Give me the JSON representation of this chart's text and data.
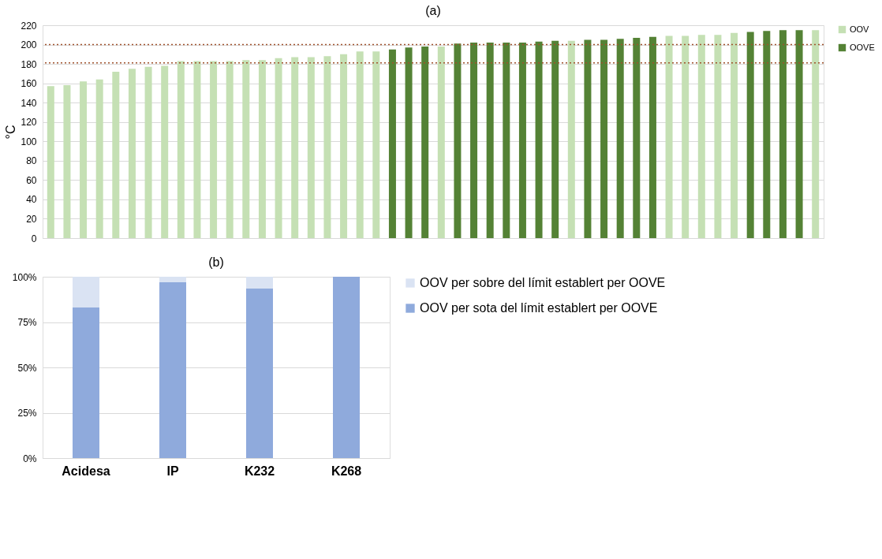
{
  "chart_data": [
    {
      "type": "bar",
      "title": "(a)",
      "ylabel": "°C",
      "categories": [
        null,
        null,
        null,
        null,
        null,
        null,
        null,
        null,
        null,
        null,
        null,
        null,
        null,
        null,
        null,
        null,
        null,
        null,
        null,
        null,
        null,
        null,
        null,
        null,
        null,
        null,
        null,
        null,
        null,
        null,
        null,
        null,
        null,
        null,
        null,
        null,
        null,
        null,
        null,
        null,
        null,
        null,
        null,
        null,
        null,
        null,
        null,
        null
      ],
      "series": [
        {
          "name": "OOV",
          "color": "#c5e0b4",
          "values": [
            157,
            158,
            162,
            164,
            172,
            175,
            177,
            178,
            183,
            183,
            183,
            183,
            184,
            184,
            186,
            187,
            187,
            188,
            190,
            193,
            193,
            null,
            null,
            null,
            198,
            null,
            null,
            null,
            null,
            null,
            null,
            null,
            204,
            null,
            null,
            null,
            null,
            null,
            209,
            209,
            210,
            210,
            212,
            null,
            null,
            null,
            null,
            215
          ]
        },
        {
          "name": "OOVE",
          "color": "#548235",
          "values": [
            null,
            null,
            null,
            null,
            null,
            null,
            null,
            null,
            null,
            null,
            null,
            null,
            null,
            null,
            null,
            null,
            null,
            null,
            null,
            null,
            null,
            195,
            197,
            198,
            null,
            201,
            202,
            202,
            202,
            202,
            203,
            204,
            null,
            205,
            205,
            206,
            207,
            208,
            null,
            null,
            null,
            null,
            null,
            213,
            214,
            215,
            215,
            null
          ]
        }
      ],
      "ylim": [
        0,
        220
      ],
      "yticks": [
        0,
        20,
        40,
        60,
        80,
        100,
        120,
        140,
        160,
        180,
        200,
        220
      ],
      "grid": "y",
      "legend": "right",
      "ref_lines": [
        {
          "axis": "y",
          "value": 200,
          "color": "#a0522d",
          "line_style": "dotted"
        },
        {
          "axis": "y",
          "value": 181,
          "color": "#a0522d",
          "line_style": "dotted"
        }
      ]
    },
    {
      "type": "bar",
      "title": "(b)",
      "stacked": true,
      "categories": [
        "Acidesa",
        "IP",
        "K232",
        "K268"
      ],
      "series": [
        {
          "name": "OOV per sota del límit establert per OOVE",
          "color": "#8faadc",
          "values": [
            83,
            97,
            93.5,
            100
          ]
        },
        {
          "name": "OOV per sobre del límit establert per OOVE",
          "color": "#dae3f3",
          "values": [
            17,
            3,
            6.5,
            0
          ]
        }
      ],
      "ylim": [
        0,
        100
      ],
      "yticks": [
        {
          "value": 0,
          "label": "0%"
        },
        {
          "value": 25,
          "label": "25%"
        },
        {
          "value": 50,
          "label": "50%"
        },
        {
          "value": 75,
          "label": "75%"
        },
        {
          "value": 100,
          "label": "100%"
        }
      ],
      "grid": "y",
      "legend": "right"
    }
  ]
}
